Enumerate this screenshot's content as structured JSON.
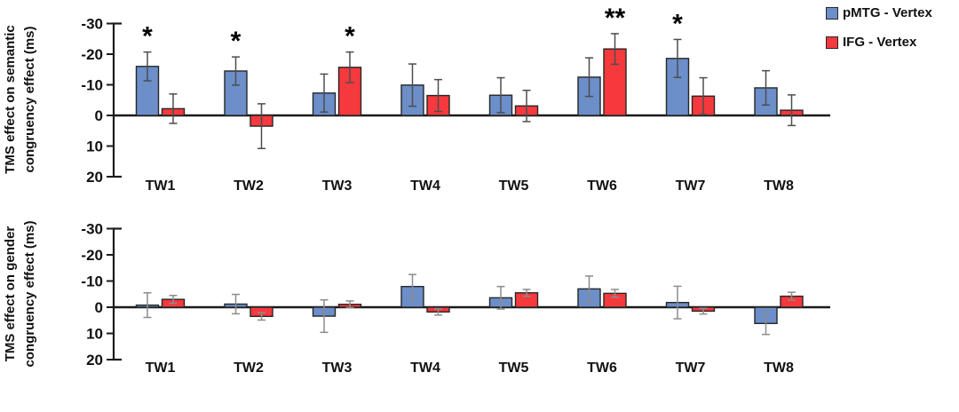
{
  "figure": {
    "legend": {
      "items": [
        {
          "label": "pMTG - Vertex",
          "color": "#6C8EC9"
        },
        {
          "label": "IFG - Vertex",
          "color": "#F5393D"
        }
      ]
    }
  },
  "chart_data": [
    {
      "type": "bar",
      "title": "",
      "ylabel": "TMS effect on semantic congruency effect (ms)",
      "ylabel_lines": [
        "TMS effect on semantic",
        "congruency effect (ms)"
      ],
      "categories": [
        "TW1",
        "TW2",
        "TW3",
        "TW4",
        "TW5",
        "TW6",
        "TW7",
        "TW8"
      ],
      "y_ticks": [
        -30,
        -20,
        -10,
        0,
        10,
        20
      ],
      "ylim": [
        -30,
        20
      ],
      "y_inverted": true,
      "grid": false,
      "legend_position": "top-right",
      "error_bar_color": "#4d4d4d",
      "series": [
        {
          "name": "pMTG - Vertex",
          "color": "#6C8EC9",
          "border": "#262626",
          "values": [
            -16,
            -14.5,
            -7.3,
            -9.9,
            -6.6,
            -12.5,
            -18.6,
            -9
          ],
          "errors": [
            4.7,
            4.6,
            6.2,
            6.9,
            5.7,
            6.3,
            6.2,
            5.6
          ]
        },
        {
          "name": "IFG - Vertex",
          "color": "#F5393D",
          "border": "#262626",
          "values": [
            -2.2,
            3.5,
            -15.7,
            -6.5,
            -3.1,
            -21.7,
            -6.3,
            -1.7
          ],
          "errors": [
            4.8,
            7.3,
            5.0,
            5.2,
            5.1,
            5.0,
            6.0,
            5.0
          ]
        }
      ],
      "annotations": [
        {
          "category": "TW1",
          "series_index": 0,
          "text": "*"
        },
        {
          "category": "TW2",
          "series_index": 0,
          "text": "*"
        },
        {
          "category": "TW3",
          "series_index": 1,
          "text": "*"
        },
        {
          "category": "TW6",
          "series_index": 1,
          "text": "**"
        },
        {
          "category": "TW7",
          "series_index": 0,
          "text": "*"
        }
      ]
    },
    {
      "type": "bar",
      "title": "",
      "ylabel": "TMS effect on gender congruency effect (ms)",
      "ylabel_lines": [
        "TMS  effect on gender",
        "congruency effect (ms)"
      ],
      "categories": [
        "TW1",
        "TW2",
        "TW3",
        "TW4",
        "TW5",
        "TW6",
        "TW7",
        "TW8"
      ],
      "y_ticks": [
        -30,
        -20,
        -10,
        0,
        10,
        20
      ],
      "ylim": [
        -30,
        20
      ],
      "y_inverted": true,
      "grid": false,
      "error_bar_color": "#8c8c8c",
      "series": [
        {
          "name": "pMTG - Vertex",
          "color": "#6C8EC9",
          "border": "#262626",
          "values": [
            -0.8,
            -1.2,
            3.4,
            -7.9,
            -3.6,
            -7.0,
            -1.8,
            6.2
          ],
          "errors": [
            4.7,
            3.7,
            6.2,
            4.6,
            4.3,
            4.9,
            6.2,
            4.2
          ]
        },
        {
          "name": "IFG - Vertex",
          "color": "#F5393D",
          "border": "#262626",
          "values": [
            -3.0,
            3.5,
            -1.1,
            1.8,
            -5.5,
            -5.3,
            1.5,
            -4.2
          ],
          "errors": [
            1.5,
            1.4,
            1.3,
            1.2,
            1.3,
            1.5,
            1.1,
            1.5
          ]
        }
      ],
      "annotations": []
    }
  ]
}
